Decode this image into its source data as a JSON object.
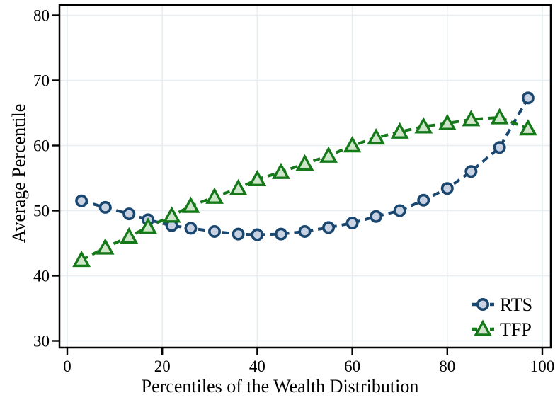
{
  "figure": {
    "background": "#ffffff",
    "text_color": "#000000",
    "gridline_color": "#e6eef2",
    "axis_color": "#000000"
  },
  "chart_data": {
    "type": "line",
    "title": "",
    "xlabel": "Percentiles of the Wealth Distribution",
    "ylabel": "Average Percentile",
    "xlim": [
      0,
      100
    ],
    "ylim": [
      30,
      80
    ],
    "x_ticks": [
      0,
      20,
      40,
      60,
      80,
      100
    ],
    "y_ticks": [
      30,
      40,
      50,
      60,
      70,
      80
    ],
    "grid": true,
    "legend_position": "inside-bottom-right",
    "x": [
      3,
      8,
      13,
      17,
      22,
      26,
      31,
      36,
      40,
      45,
      50,
      55,
      60,
      65,
      70,
      75,
      80,
      85,
      91,
      97
    ],
    "series": [
      {
        "name": "RTS",
        "marker": "circle",
        "line_style": "dashed",
        "stroke": "#1a476f",
        "fill": "#c9d2e3",
        "values": [
          51.5,
          50.5,
          49.5,
          48.6,
          47.7,
          47.3,
          46.8,
          46.4,
          46.3,
          46.4,
          46.8,
          47.4,
          48.1,
          49.1,
          50.0,
          51.6,
          53.4,
          56.0,
          59.7,
          67.3
        ]
      },
      {
        "name": "TFP",
        "marker": "triangle",
        "line_style": "dashed",
        "stroke": "#15791a",
        "fill": "#cfe5c9",
        "values": [
          42.4,
          44.3,
          46.0,
          47.5,
          49.2,
          50.7,
          52.1,
          53.4,
          54.8,
          55.9,
          57.2,
          58.4,
          60.0,
          61.2,
          62.1,
          62.9,
          63.4,
          64.0,
          64.3,
          62.6
        ]
      }
    ]
  }
}
